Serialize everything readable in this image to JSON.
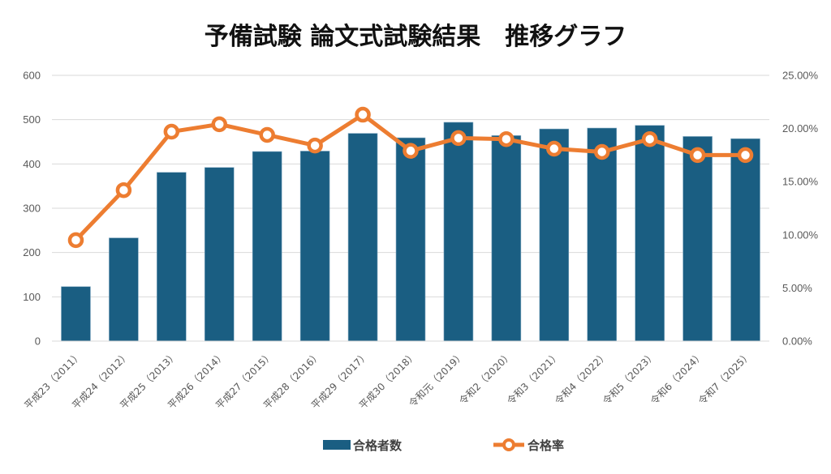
{
  "chart_data": {
    "type": "bar+line",
    "title": "予備試験 論文式試験結果　推移グラフ",
    "categories": [
      "平成23（2011）",
      "平成24（2012）",
      "平成25（2013）",
      "平成26（2014）",
      "平成27（2015）",
      "平成28（2016）",
      "平成29（2017）",
      "平成30（2018）",
      "令和元（2019）",
      "令和2（2020）",
      "令和3（2021）",
      "令和4（2022）",
      "令和5（2023）",
      "令和6（2024）",
      "令和7（2025）"
    ],
    "series": [
      {
        "name": "合格者数",
        "type": "bar",
        "axis": "left",
        "color": "#1a5e82",
        "values": [
          123,
          233,
          381,
          392,
          428,
          429,
          469,
          459,
          494,
          464,
          479,
          481,
          487,
          462,
          457
        ]
      },
      {
        "name": "合格率",
        "type": "line",
        "axis": "right",
        "color": "#ed7d31",
        "values": [
          9.5,
          14.2,
          19.7,
          20.4,
          19.4,
          18.4,
          21.3,
          17.9,
          19.1,
          19.0,
          18.1,
          17.8,
          19.0,
          17.5,
          17.5
        ]
      }
    ],
    "left_axis": {
      "ylim": [
        0,
        600
      ],
      "ticks": [
        "0",
        "100",
        "200",
        "300",
        "400",
        "500",
        "600"
      ]
    },
    "right_axis": {
      "ylim": [
        0,
        25
      ],
      "ticks": [
        "0.00%",
        "5.00%",
        "10.00%",
        "15.00%",
        "20.00%",
        "25.00%"
      ]
    },
    "grid": true,
    "legend_position": "bottom",
    "xlabel": "",
    "ylabel": ""
  }
}
